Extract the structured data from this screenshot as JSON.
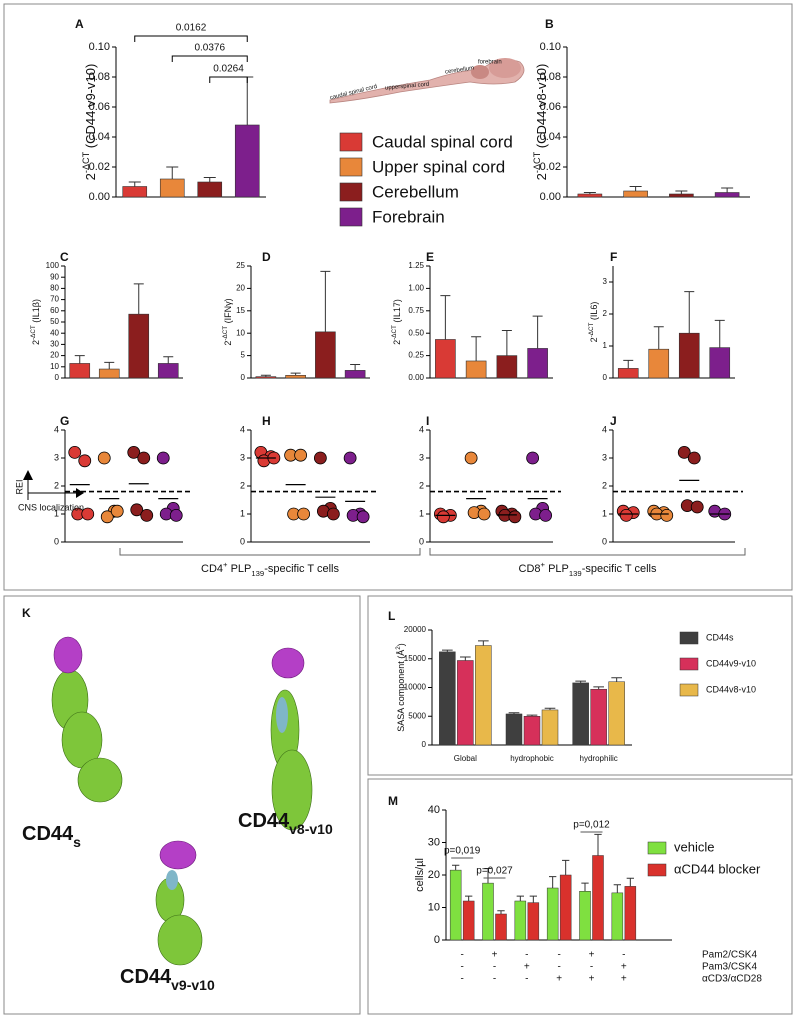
{
  "chart_data": [
    {
      "panel": "A",
      "type": "bar",
      "ylabel": {
        "base": "2",
        "sup": "-ΔCT",
        "text": " (CD44 v9-v10)"
      },
      "categories": [
        null,
        null,
        null,
        null
      ],
      "values": [
        0.007,
        0.012,
        0.01,
        0.048
      ],
      "errors": [
        0.003,
        0.008,
        0.003,
        0.032
      ],
      "colors": [
        "#d93a35",
        "#e8873a",
        "#8b1e1e",
        "#7d1f8c"
      ],
      "legend": [
        "Caudal spinal cord",
        "Upper spinal cord",
        "Cerebellum",
        "Forebrain"
      ],
      "annotations": [
        "0.0162",
        "0.0376",
        "0.0264"
      ],
      "ylim": [
        0,
        0.1
      ],
      "yticks": [
        {
          "value": 0,
          "label": "0.00"
        },
        {
          "value": 0.02,
          "label": "0.02"
        },
        {
          "value": 0.04,
          "label": "0.04"
        },
        {
          "value": 0.06,
          "label": "0.06"
        },
        {
          "value": 0.08,
          "label": "0.08"
        },
        {
          "value": 0.1,
          "label": "0.10"
        }
      ]
    },
    {
      "panel": "B",
      "type": "bar",
      "ylabel": {
        "base": "2",
        "sup": "-ΔCT",
        "text": " (CD44 v8-v10)"
      },
      "categories": [
        null,
        null,
        null,
        null
      ],
      "values": [
        0.002,
        0.004,
        0.002,
        0.003
      ],
      "errors": [
        0.001,
        0.003,
        0.002,
        0.003
      ],
      "colors": [
        "#d93a35",
        "#e8873a",
        "#8b1e1e",
        "#7d1f8c"
      ],
      "ylim": [
        0,
        0.1
      ],
      "yticks": [
        {
          "value": 0,
          "label": "0.00"
        },
        {
          "value": 0.02,
          "label": "0.02"
        },
        {
          "value": 0.04,
          "label": "0.04"
        },
        {
          "value": 0.06,
          "label": "0.06"
        },
        {
          "value": 0.08,
          "label": "0.08"
        },
        {
          "value": 0.1,
          "label": "0.10"
        }
      ]
    },
    {
      "panel": "C",
      "type": "bar",
      "ylabel": {
        "base": "2",
        "sup": "-ΔCT",
        "text": " (IL1β)"
      },
      "categories": [
        null,
        null,
        null,
        null
      ],
      "values": [
        13,
        8,
        57,
        13
      ],
      "errors": [
        7,
        6,
        27,
        6
      ],
      "colors": [
        "#d93a35",
        "#e8873a",
        "#8b1e1e",
        "#7d1f8c"
      ],
      "ylim": [
        0,
        100
      ],
      "yticks": [
        0,
        10,
        20,
        30,
        40,
        50,
        60,
        70,
        80,
        90,
        100
      ]
    },
    {
      "panel": "D",
      "type": "bar",
      "ylabel": {
        "base": "2",
        "sup": "-ΔCT",
        "text": " (IFNγ)"
      },
      "categories": [
        null,
        null,
        null,
        null
      ],
      "values": [
        0.3,
        0.6,
        10.3,
        1.7
      ],
      "errors": [
        0.3,
        0.5,
        13.5,
        1.3
      ],
      "colors": [
        "#d93a35",
        "#e8873a",
        "#8b1e1e",
        "#7d1f8c"
      ],
      "ylim": [
        0,
        25
      ],
      "yticks": [
        0,
        5,
        10,
        15,
        20,
        25
      ]
    },
    {
      "panel": "E",
      "type": "bar",
      "ylabel": {
        "base": "2",
        "sup": "-ΔCT",
        "text": " (IL17)"
      },
      "categories": [
        null,
        null,
        null,
        null
      ],
      "values": [
        0.43,
        0.19,
        0.25,
        0.33
      ],
      "errors": [
        0.49,
        0.27,
        0.28,
        0.36
      ],
      "colors": [
        "#d93a35",
        "#e8873a",
        "#8b1e1e",
        "#7d1f8c"
      ],
      "ylim": [
        0,
        1.25
      ],
      "yticks": [
        {
          "value": 0,
          "label": "0.00"
        },
        {
          "value": 0.25,
          "label": "0.25"
        },
        {
          "value": 0.5,
          "label": "0.50"
        },
        {
          "value": 0.75,
          "label": "0.75"
        },
        {
          "value": 1,
          "label": "1.00"
        },
        {
          "value": 1.25,
          "label": "1.25"
        }
      ]
    },
    {
      "panel": "F",
      "type": "bar",
      "ylabel": {
        "base": "2",
        "sup": "-ΔCT",
        "text": " (IL6)"
      },
      "categories": [
        null,
        null,
        null,
        null
      ],
      "values": [
        0.3,
        0.9,
        1.4,
        0.95
      ],
      "errors": [
        0.25,
        0.7,
        1.3,
        0.85
      ],
      "colors": [
        "#d93a35",
        "#e8873a",
        "#8b1e1e",
        "#7d1f8c"
      ],
      "ylim": [
        0,
        3.5
      ],
      "yticks": [
        0,
        1,
        2,
        3
      ]
    },
    {
      "panel": "G",
      "type": "dot",
      "threshold": 1.8,
      "ylim": [
        0,
        4
      ],
      "yticks": [
        0,
        1,
        2,
        3,
        4
      ],
      "series": [
        {
          "color": "#d93a35",
          "values": [
            3.2,
            2.9,
            1,
            1
          ],
          "mean": 2.05
        },
        {
          "color": "#e8873a",
          "values": [
            3,
            1.1,
            0.9,
            1.1
          ],
          "mean": 1.55
        },
        {
          "color": "#8b1e1e",
          "values": [
            3.2,
            3,
            1.15,
            0.95
          ],
          "mean": 2.08
        },
        {
          "color": "#7d1f8c",
          "values": [
            3,
            1.2,
            1,
            0.95
          ],
          "mean": 1.55
        }
      ]
    },
    {
      "panel": "H",
      "type": "dot",
      "threshold": 1.8,
      "ylim": [
        0,
        4
      ],
      "yticks": [
        0,
        1,
        2,
        3,
        4
      ],
      "series": [
        {
          "color": "#d93a35",
          "values": [
            3.2,
            3.05,
            2.9,
            3
          ],
          "mean": 3
        },
        {
          "color": "#e8873a",
          "values": [
            3.1,
            3.1,
            1,
            1
          ],
          "mean": 2.05
        },
        {
          "color": "#8b1e1e",
          "values": [
            3,
            1.2,
            1.1,
            1
          ],
          "mean": 1.6
        },
        {
          "color": "#7d1f8c",
          "values": [
            3,
            1,
            0.95,
            0.9
          ],
          "mean": 1.45
        }
      ]
    },
    {
      "panel": "I",
      "type": "dot",
      "threshold": 1.8,
      "ylim": [
        0,
        4
      ],
      "yticks": [
        0,
        1,
        2,
        3,
        4
      ],
      "series": [
        {
          "color": "#d93a35",
          "values": [
            1,
            0.95,
            0.9
          ],
          "mean": 0.95
        },
        {
          "color": "#e8873a",
          "values": [
            3,
            1.1,
            1.05,
            1
          ],
          "mean": 1.55
        },
        {
          "color": "#8b1e1e",
          "values": [
            1.1,
            1,
            0.95,
            0.9
          ],
          "mean": 0.97
        },
        {
          "color": "#7d1f8c",
          "values": [
            3,
            1.2,
            1,
            0.95
          ],
          "mean": 1.55
        }
      ]
    },
    {
      "panel": "J",
      "type": "dot",
      "threshold": 1.8,
      "ylim": [
        0,
        4
      ],
      "yticks": [
        0,
        1,
        2,
        3,
        4
      ],
      "series": [
        {
          "color": "#d93a35",
          "values": [
            1.1,
            1.05,
            0.95
          ],
          "mean": 1
        },
        {
          "color": "#e8873a",
          "values": [
            1.1,
            1.05,
            1,
            0.95
          ],
          "mean": 1
        },
        {
          "color": "#8b1e1e",
          "values": [
            3.2,
            3,
            1.3,
            1.25
          ],
          "mean": 2.2
        },
        {
          "color": "#7d1f8c",
          "values": [
            1.1,
            1
          ],
          "mean": 1
        }
      ]
    },
    {
      "panel": "L",
      "type": "grouped",
      "ylabel": {
        "base": "SASA component (Å",
        "sup": "2",
        "text": ")"
      },
      "categories": [
        "Global",
        "hydrophobic",
        "hydrophilic"
      ],
      "series": [
        {
          "name": "CD44s",
          "color": "#3f3f3f",
          "values": [
            16200,
            5400,
            10800
          ],
          "errors": [
            300,
            200,
            300
          ]
        },
        {
          "name": "CD44v9-v10",
          "color": "#d6305a",
          "values": [
            14700,
            5000,
            9700
          ],
          "errors": [
            600,
            200,
            400
          ]
        },
        {
          "name": "CD44v8-v10",
          "color": "#e8b84a",
          "values": [
            17300,
            6100,
            11000
          ],
          "errors": [
            800,
            300,
            700
          ]
        }
      ],
      "ylim": [
        0,
        20000
      ],
      "yticks": [
        0,
        5000,
        10000,
        15000,
        20000
      ]
    },
    {
      "panel": "M",
      "type": "grouped",
      "ylabel": {
        "base": "cells/µl",
        "sup": "",
        "text": ""
      },
      "categories": [
        null,
        null,
        null,
        null,
        null,
        null
      ],
      "series": [
        {
          "name": "vehicle",
          "color": "#7fe040",
          "values": [
            21.5,
            17.5,
            12,
            16,
            15,
            14.5
          ],
          "errors": [
            1.5,
            4.5,
            1.5,
            3.5,
            2.5,
            2.5
          ]
        },
        {
          "name": "αCD44 blocker",
          "color": "#d9312c",
          "values": [
            12,
            8,
            11.5,
            20,
            26,
            16.5
          ],
          "errors": [
            1.5,
            1,
            2,
            4.5,
            6.5,
            2.5
          ]
        }
      ],
      "annotations": [
        "p=0,019",
        "p=0,027",
        "p=0,012"
      ],
      "conditions": [
        {
          "label": "Pam2/CSK4",
          "marks": [
            "-",
            "+",
            "-",
            "-",
            "+",
            "-"
          ]
        },
        {
          "label": "Pam3/CSK4",
          "marks": [
            "-",
            "-",
            "+",
            "-",
            "-",
            "+"
          ]
        },
        {
          "label": "αCD3/αCD28",
          "marks": [
            "-",
            "-",
            "-",
            "+",
            "+",
            "+"
          ]
        }
      ],
      "ylim": [
        0,
        40
      ],
      "yticks": [
        0,
        10,
        20,
        30,
        40
      ]
    }
  ],
  "illustration": [
    "caudal spinal cord",
    "upperspinal cord",
    "cerebellum",
    "forebrain"
  ],
  "axis_key": {
    "y": "REI",
    "x": "CNS localization"
  },
  "t_cell_groups": [
    {
      "a": "CD4",
      "sup": "+",
      "b": " PLP",
      "sub": "139",
      "c": "-specific T cells"
    },
    {
      "a": "CD8",
      "sup": "+",
      "b": " PLP",
      "sub": "139",
      "c": "-specific T cells"
    }
  ],
  "structures": {
    "panel": "K",
    "labels": [
      {
        "base": "CD44",
        "sub": "s"
      },
      {
        "base": "CD44",
        "sub": "v8-v10"
      },
      {
        "base": "CD44",
        "sub": "v9-v10"
      }
    ]
  }
}
